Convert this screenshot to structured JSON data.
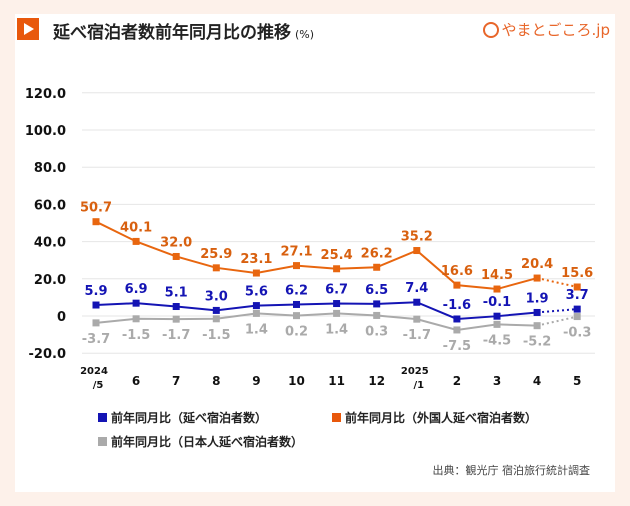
{
  "header": {
    "title": "延べ宿泊者数前年同月比の推移",
    "unit": "(%)",
    "logo_text": "やまとごころ.jp",
    "logo_icon": "yamatogokoro-logo-icon"
  },
  "source": "出典：観光庁 宿泊旅行統計調査",
  "chart_data": {
    "type": "line",
    "title": "延べ宿泊者数前年同月比の推移",
    "ylim": [
      -20,
      120
    ],
    "yticks": [
      "120.0",
      "100.0",
      "80.0",
      "60.0",
      "40.0",
      "20.0",
      "0",
      "-20.0"
    ],
    "ytick_values": [
      120,
      100,
      80,
      60,
      40,
      20,
      0,
      -20
    ],
    "grid": true,
    "legend_placement": "bottom",
    "categories": [
      [
        "2024",
        "/5"
      ],
      [
        "6"
      ],
      [
        "7"
      ],
      [
        "8"
      ],
      [
        "9"
      ],
      [
        "10"
      ],
      [
        "11"
      ],
      [
        "12"
      ],
      [
        "2025",
        "/1"
      ],
      [
        "2"
      ],
      [
        "3"
      ],
      [
        "4"
      ],
      [
        "5"
      ]
    ],
    "last_segment_dotted": true,
    "series": [
      {
        "name": "前年同月比（延べ宿泊者数）",
        "color": "#1414b4",
        "label_color": "#1414b4",
        "values": [
          5.9,
          6.9,
          5.1,
          3.0,
          5.6,
          6.2,
          6.7,
          6.5,
          7.4,
          -1.6,
          -0.1,
          1.9,
          3.7
        ],
        "labels": [
          "5.9",
          "6.9",
          "5.1",
          "3.0",
          "5.6",
          "6.2",
          "6.7",
          "6.5",
          "7.4",
          "-1.6",
          "-0.1",
          "1.9",
          "3.7"
        ],
        "label_pos": "above"
      },
      {
        "name": "前年同月比（外国人延べ宿泊者数）",
        "color": "#e8660f",
        "label_color": "#d8600f",
        "values": [
          50.7,
          40.1,
          32.0,
          25.9,
          23.1,
          27.1,
          25.4,
          26.2,
          35.2,
          16.6,
          14.5,
          20.4,
          15.6
        ],
        "labels": [
          "50.7",
          "40.1",
          "32.0",
          "25.9",
          "23.1",
          "27.1",
          "25.4",
          "26.2",
          "35.2",
          "16.6",
          "14.5",
          "20.4",
          "15.6"
        ],
        "label_pos": "above"
      },
      {
        "name": "前年同月比（日本人延べ宿泊者数）",
        "color": "#aaaaaa",
        "label_color": "#aaaaaa",
        "values": [
          -3.7,
          -1.5,
          -1.7,
          -1.5,
          1.4,
          0.2,
          1.4,
          0.3,
          -1.7,
          -7.5,
          -4.5,
          -5.2,
          -0.3
        ],
        "labels": [
          "-3.7",
          "-1.5",
          "-1.7",
          "-1.5",
          "1.4",
          "0.2",
          "1.4",
          "0.3",
          "-1.7",
          "-7.5",
          "-4.5",
          "-5.2",
          "-0.3"
        ],
        "label_pos": "below"
      }
    ]
  }
}
